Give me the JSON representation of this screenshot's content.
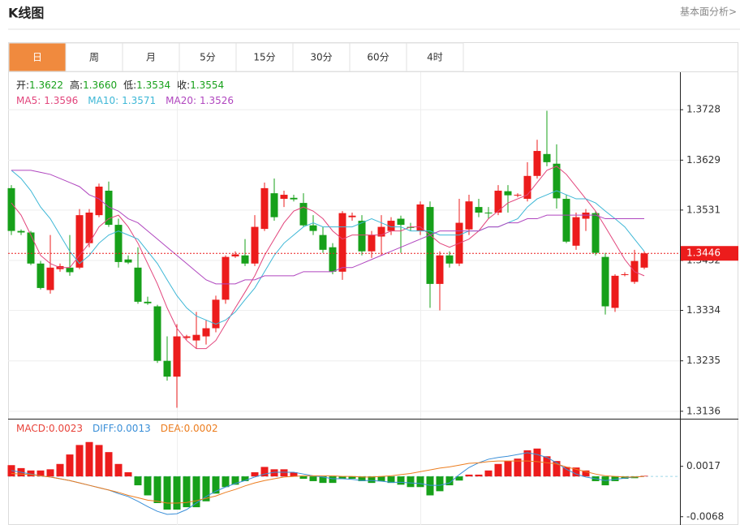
{
  "header": {
    "title": "K线图",
    "link": "基本面分析>"
  },
  "tabs": {
    "items": [
      "日",
      "周",
      "月",
      "5分",
      "15分",
      "30分",
      "60分",
      "4时"
    ],
    "active": 0,
    "active_color": "#f08a3e"
  },
  "chart_data": [
    {
      "type": "candlestick",
      "up_color": "#ec1c1c",
      "down_color": "#17a01a",
      "ylim": [
        1.3123,
        1.38
      ],
      "yticks": [
        1.3136,
        1.3235,
        1.3334,
        1.3432,
        1.3531,
        1.3629,
        1.3728
      ],
      "grid": true,
      "last_price": 1.3446,
      "last_price_color": "#ec1c1c",
      "readout": [
        {
          "label": "开:",
          "value": "1.3622"
        },
        {
          "label": "高:",
          "value": "1.3660"
        },
        {
          "label": "低:",
          "value": "1.3534"
        },
        {
          "label": "收:",
          "value": "1.3554"
        }
      ],
      "open": [
        1.3574,
        1.349,
        1.3487,
        1.3426,
        1.3374,
        1.3415,
        1.3418,
        1.3418,
        1.3466,
        1.3521,
        1.3569,
        1.3502,
        1.3434,
        1.3418,
        1.3351,
        1.3342,
        1.3235,
        1.3204,
        1.328,
        1.3275,
        1.3283,
        1.3299,
        1.3355,
        1.344,
        1.3442,
        1.3426,
        1.3494,
        1.3564,
        1.3553,
        1.3555,
        1.3545,
        1.3501,
        1.3482,
        1.3458,
        1.341,
        1.3517,
        1.351,
        1.345,
        1.3479,
        1.349,
        1.3514,
        1.3498,
        1.349,
        1.3537,
        1.3386,
        1.3442,
        1.3426,
        1.3493,
        1.3537,
        1.3526,
        1.3526,
        1.3568,
        1.356,
        1.3553,
        1.3598,
        1.3641,
        1.3622,
        1.3553,
        1.3461,
        1.3514,
        1.3525,
        1.3439,
        1.3339,
        1.3404,
        1.339,
        1.3418
      ],
      "high": [
        1.358,
        1.3493,
        1.349,
        1.3431,
        1.3482,
        1.3426,
        1.3482,
        1.3533,
        1.3533,
        1.3583,
        1.3587,
        1.3514,
        1.3442,
        1.3458,
        1.3361,
        1.3345,
        1.3283,
        1.3307,
        1.3286,
        1.3331,
        1.3315,
        1.3363,
        1.3442,
        1.345,
        1.3474,
        1.3521,
        1.3585,
        1.3593,
        1.3569,
        1.3561,
        1.3564,
        1.3521,
        1.3498,
        1.3466,
        1.3529,
        1.3526,
        1.3521,
        1.349,
        1.3521,
        1.3517,
        1.352,
        1.3506,
        1.3548,
        1.3548,
        1.345,
        1.345,
        1.3553,
        1.3561,
        1.3553,
        1.3537,
        1.358,
        1.358,
        1.3564,
        1.3625,
        1.3669,
        1.3726,
        1.366,
        1.3561,
        1.3526,
        1.3533,
        1.3529,
        1.3447,
        1.3405,
        1.3409,
        1.3453,
        1.345
      ],
      "low": [
        1.3482,
        1.3482,
        1.3423,
        1.3375,
        1.3367,
        1.341,
        1.3402,
        1.3415,
        1.3458,
        1.3517,
        1.3498,
        1.3418,
        1.3425,
        1.3347,
        1.3345,
        1.3231,
        1.3196,
        1.3143,
        1.3277,
        1.3259,
        1.3267,
        1.3291,
        1.3347,
        1.3437,
        1.3421,
        1.3421,
        1.349,
        1.351,
        1.3537,
        1.3548,
        1.3498,
        1.3482,
        1.3447,
        1.3405,
        1.3394,
        1.351,
        1.3442,
        1.3437,
        1.3442,
        1.3482,
        1.3447,
        1.349,
        1.3482,
        1.3339,
        1.3334,
        1.3418,
        1.3421,
        1.3482,
        1.3517,
        1.3514,
        1.3521,
        1.3526,
        1.3556,
        1.3548,
        1.3593,
        1.3617,
        1.3534,
        1.3466,
        1.3453,
        1.349,
        1.3442,
        1.3326,
        1.3331,
        1.3401,
        1.3386,
        1.3415
      ],
      "close": [
        1.349,
        1.3487,
        1.3426,
        1.3378,
        1.3418,
        1.3421,
        1.3409,
        1.3521,
        1.3526,
        1.3577,
        1.3502,
        1.3429,
        1.3428,
        1.3351,
        1.3348,
        1.3235,
        1.3204,
        1.3283,
        1.3283,
        1.3286,
        1.3299,
        1.3355,
        1.3439,
        1.3444,
        1.3426,
        1.3498,
        1.3574,
        1.3517,
        1.3561,
        1.3552,
        1.3501,
        1.349,
        1.3453,
        1.341,
        1.3525,
        1.352,
        1.345,
        1.3482,
        1.3498,
        1.351,
        1.3502,
        1.3496,
        1.3542,
        1.3386,
        1.3442,
        1.3426,
        1.3506,
        1.3548,
        1.3526,
        1.3525,
        1.3569,
        1.356,
        1.3561,
        1.3598,
        1.3647,
        1.3625,
        1.3554,
        1.3469,
        1.3517,
        1.3526,
        1.3447,
        1.3342,
        1.3402,
        1.3405,
        1.3431,
        1.3446
      ],
      "series": [
        {
          "name": "MA5:",
          "readout": "1.3596",
          "color": "#e2457c",
          "values": [
            1.3545,
            1.3521,
            1.3482,
            1.3442,
            1.3426,
            1.3418,
            1.3418,
            1.3442,
            1.3466,
            1.3498,
            1.3514,
            1.3521,
            1.3498,
            1.3466,
            1.3426,
            1.3386,
            1.3339,
            1.3299,
            1.3275,
            1.3259,
            1.3259,
            1.3275,
            1.3307,
            1.3339,
            1.337,
            1.3402,
            1.3442,
            1.3474,
            1.3506,
            1.3529,
            1.3537,
            1.3529,
            1.3514,
            1.349,
            1.3474,
            1.3482,
            1.3482,
            1.3482,
            1.3482,
            1.349,
            1.349,
            1.3498,
            1.3498,
            1.3482,
            1.3466,
            1.3458,
            1.3466,
            1.3474,
            1.349,
            1.3514,
            1.3529,
            1.3545,
            1.3553,
            1.3561,
            1.3585,
            1.3609,
            1.3617,
            1.3601,
            1.3577,
            1.3553,
            1.3529,
            1.3498,
            1.3466,
            1.3434,
            1.341,
            1.3402
          ]
        },
        {
          "name": "MA10:",
          "readout": "1.3571",
          "color": "#3db7d6",
          "values": [
            1.3609,
            1.3593,
            1.3569,
            1.3537,
            1.3514,
            1.3482,
            1.345,
            1.3426,
            1.3442,
            1.3466,
            1.3482,
            1.349,
            1.3482,
            1.3474,
            1.345,
            1.3426,
            1.3394,
            1.3363,
            1.3339,
            1.3323,
            1.3315,
            1.3307,
            1.3315,
            1.3331,
            1.3355,
            1.3378,
            1.341,
            1.3442,
            1.3466,
            1.3482,
            1.3498,
            1.3506,
            1.3498,
            1.3498,
            1.3498,
            1.3498,
            1.3506,
            1.3514,
            1.3506,
            1.3498,
            1.3498,
            1.349,
            1.349,
            1.349,
            1.3482,
            1.3482,
            1.3482,
            1.349,
            1.349,
            1.3498,
            1.3498,
            1.3506,
            1.3514,
            1.3537,
            1.3553,
            1.3561,
            1.3569,
            1.3561,
            1.3553,
            1.3553,
            1.3545,
            1.3529,
            1.3514,
            1.3498,
            1.3474,
            1.345
          ]
        },
        {
          "name": "MA20:",
          "readout": "1.3526",
          "color": "#b046bf",
          "values": [
            1.3609,
            1.3609,
            1.3609,
            1.3605,
            1.3601,
            1.3593,
            1.3585,
            1.3577,
            1.3561,
            1.3553,
            1.3537,
            1.3529,
            1.3514,
            1.3506,
            1.349,
            1.3474,
            1.3458,
            1.3442,
            1.3426,
            1.341,
            1.3394,
            1.3386,
            1.3386,
            1.3386,
            1.3394,
            1.3394,
            1.3402,
            1.3402,
            1.3402,
            1.3402,
            1.341,
            1.341,
            1.341,
            1.341,
            1.3418,
            1.3418,
            1.3426,
            1.3434,
            1.3442,
            1.345,
            1.3458,
            1.3466,
            1.3474,
            1.3482,
            1.349,
            1.349,
            1.349,
            1.349,
            1.349,
            1.3498,
            1.3498,
            1.3506,
            1.3506,
            1.3514,
            1.3514,
            1.3521,
            1.3521,
            1.3521,
            1.3521,
            1.3521,
            1.3521,
            1.3514,
            1.3514,
            1.3514,
            1.3514,
            1.3514
          ]
        }
      ]
    },
    {
      "type": "macd",
      "up_color": "#ec1c1c",
      "down_color": "#17a01a",
      "ylim": [
        -0.0082,
        0.0096
      ],
      "yticks": [
        0.0017,
        -0.0068
      ],
      "series": [
        {
          "name": "MACD:",
          "readout": "0.0023",
          "color": "#e8433a",
          "style": "bar",
          "values": [
            0.0019,
            0.0014,
            0.001,
            0.001,
            0.0012,
            0.0021,
            0.0037,
            0.0053,
            0.0058,
            0.0053,
            0.0041,
            0.0021,
            0.0007,
            -0.0015,
            -0.0032,
            -0.0045,
            -0.0056,
            -0.0056,
            -0.0052,
            -0.0052,
            -0.0042,
            -0.0029,
            -0.0018,
            -0.0014,
            -0.0008,
            0.0007,
            0.0016,
            0.0012,
            0.0012,
            0.0007,
            -0.0004,
            -0.0008,
            -0.0011,
            -0.0011,
            -0.0004,
            -0.0004,
            -0.0008,
            -0.0011,
            -0.0008,
            -0.0011,
            -0.0014,
            -0.0018,
            -0.0018,
            -0.0032,
            -0.0025,
            -0.0015,
            -0.0007,
            0.0003,
            0.0003,
            0.001,
            0.0021,
            0.0026,
            0.003,
            0.0044,
            0.0047,
            0.0034,
            0.0026,
            0.0016,
            0.0015,
            0.001,
            -0.0008,
            -0.0015,
            -0.0008,
            -0.0004,
            -0.0003,
            0.0001
          ]
        },
        {
          "name": "DIFF:",
          "readout": "0.0013",
          "color": "#3a8fd8",
          "style": "line",
          "values": [
            0.001,
            0.0007,
            0.0004,
            0.0001,
            -0.0001,
            -0.0004,
            -0.0007,
            -0.0011,
            -0.0015,
            -0.0019,
            -0.0023,
            -0.0029,
            -0.0034,
            -0.0042,
            -0.0051,
            -0.0059,
            -0.0064,
            -0.0063,
            -0.0056,
            -0.0045,
            -0.0034,
            -0.0025,
            -0.0018,
            -0.0012,
            -0.0007,
            -0.0001,
            0.0004,
            0.0007,
            0.0007,
            0.0007,
            0.0004,
            0.0001,
            -0.0001,
            -0.0004,
            -0.0004,
            -0.0005,
            -0.0007,
            -0.0007,
            -0.0008,
            -0.001,
            -0.001,
            -0.0011,
            -0.0012,
            -0.0015,
            -0.0015,
            -0.0011,
            0.0003,
            0.0015,
            0.0023,
            0.0029,
            0.0032,
            0.0034,
            0.0037,
            0.004,
            0.0037,
            0.0032,
            0.0023,
            0.0012,
            0.0004,
            -0.0001,
            -0.0004,
            -0.0007,
            -0.0005,
            -0.0003,
            -0.0001,
            0
          ]
        },
        {
          "name": "DEA:",
          "readout": "0.0002",
          "color": "#ec7d1f",
          "style": "line",
          "values": [
            0.0005,
            0.0004,
            0.0003,
            0.0001,
            -0.0001,
            -0.0004,
            -0.0007,
            -0.0011,
            -0.0015,
            -0.0019,
            -0.0023,
            -0.0027,
            -0.0032,
            -0.0036,
            -0.004,
            -0.0042,
            -0.0045,
            -0.0045,
            -0.0044,
            -0.0041,
            -0.0037,
            -0.0033,
            -0.0027,
            -0.0022,
            -0.0016,
            -0.0011,
            -0.0007,
            -0.0004,
            -0.0001,
            0,
            0.0001,
            0.0001,
            0.0001,
            0.0001,
            0,
            0,
            -0.0001,
            -0.0001,
            0,
            0.0001,
            0.0003,
            0.0005,
            0.0008,
            0.0011,
            0.0014,
            0.0016,
            0.0019,
            0.0022,
            0.0023,
            0.0025,
            0.0026,
            0.0026,
            0.0026,
            0.0026,
            0.0025,
            0.0023,
            0.0021,
            0.0016,
            0.0012,
            0.0008,
            0.0004,
            0.0001,
            0,
            -0.0001,
            -0.0001,
            0
          ]
        }
      ]
    }
  ]
}
